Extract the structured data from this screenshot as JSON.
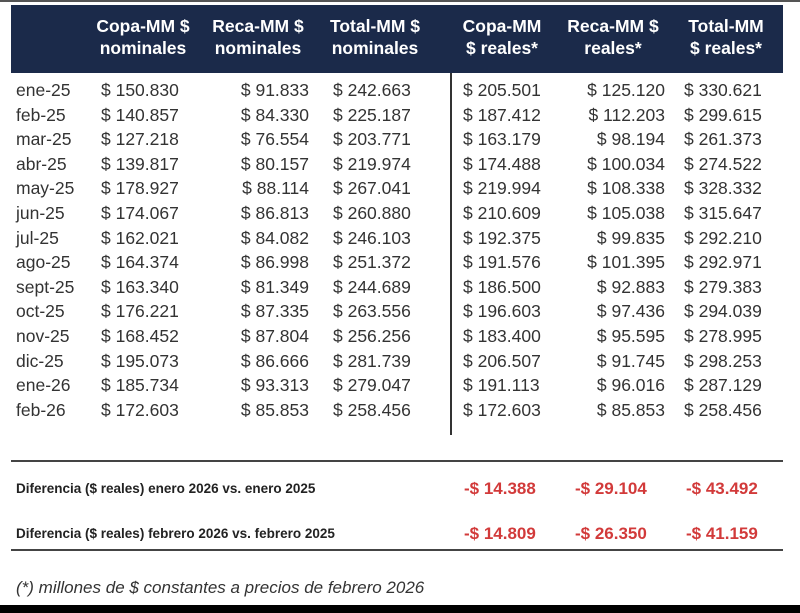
{
  "table": {
    "headers": [
      "Copa-MM $\nnominales",
      "Reca-MM $\nnominales",
      "Total-MM $\nnominales",
      "Copa-MM\n$ reales*",
      "Reca-MM $\nreales*",
      "Total-MM\n$ reales*"
    ],
    "rows": [
      {
        "month": "ene-25",
        "values": [
          "$ 150.830",
          "$ 91.833",
          "$ 242.663",
          "$ 205.501",
          "$ 125.120",
          "$ 330.621"
        ]
      },
      {
        "month": "feb-25",
        "values": [
          "$ 140.857",
          "$ 84.330",
          "$ 225.187",
          "$ 187.412",
          "$ 112.203",
          "$ 299.615"
        ]
      },
      {
        "month": "mar-25",
        "values": [
          "$ 127.218",
          "$ 76.554",
          "$ 203.771",
          "$ 163.179",
          "$ 98.194",
          "$ 261.373"
        ]
      },
      {
        "month": "abr-25",
        "values": [
          "$ 139.817",
          "$ 80.157",
          "$ 219.974",
          "$ 174.488",
          "$ 100.034",
          "$ 274.522"
        ]
      },
      {
        "month": "may-25",
        "values": [
          "$ 178.927",
          "$ 88.114",
          "$ 267.041",
          "$ 219.994",
          "$ 108.338",
          "$ 328.332"
        ]
      },
      {
        "month": "jun-25",
        "values": [
          "$ 174.067",
          "$ 86.813",
          "$ 260.880",
          "$ 210.609",
          "$ 105.038",
          "$ 315.647"
        ]
      },
      {
        "month": "jul-25",
        "values": [
          "$ 162.021",
          "$ 84.082",
          "$ 246.103",
          "$ 192.375",
          "$ 99.835",
          "$ 292.210"
        ]
      },
      {
        "month": "ago-25",
        "values": [
          "$ 164.374",
          "$ 86.998",
          "$ 251.372",
          "$ 191.576",
          "$ 101.395",
          "$ 292.971"
        ]
      },
      {
        "month": "sept-25",
        "values": [
          "$ 163.340",
          "$ 81.349",
          "$ 244.689",
          "$ 186.500",
          "$ 92.883",
          "$ 279.383"
        ]
      },
      {
        "month": "oct-25",
        "values": [
          "$ 176.221",
          "$ 87.335",
          "$ 263.556",
          "$ 196.603",
          "$ 97.436",
          "$ 294.039"
        ]
      },
      {
        "month": "nov-25",
        "values": [
          "$ 168.452",
          "$ 87.804",
          "$ 256.256",
          "$ 183.400",
          "$ 95.595",
          "$ 278.995"
        ]
      },
      {
        "month": "dic-25",
        "values": [
          "$ 195.073",
          "$ 86.666",
          "$ 281.739",
          "$ 206.507",
          "$ 91.745",
          "$ 298.253"
        ]
      },
      {
        "month": "ene-26",
        "values": [
          "$ 185.734",
          "$ 93.313",
          "$ 279.047",
          "$ 191.113",
          "$ 96.016",
          "$ 287.129"
        ]
      },
      {
        "month": "feb-26",
        "values": [
          "$ 172.603",
          "$ 85.853",
          "$ 258.456",
          "$ 172.603",
          "$ 85.853",
          "$ 258.456"
        ]
      }
    ]
  },
  "differences": [
    {
      "label": "Diferencia ($ reales) enero 2026 vs. enero 2025",
      "values": [
        "-$ 14.388",
        "-$ 29.104",
        "-$ 43.492"
      ]
    },
    {
      "label": "Diferencia ($ reales) febrero 2026 vs. febrero 2025",
      "values": [
        "-$ 14.809",
        "-$ 26.350",
        "-$ 41.159"
      ]
    }
  ],
  "footnote": "(*) millones de $ constantes a precios de febrero 2026",
  "colors": {
    "header_bg": "#1b2a4a",
    "header_text": "#ffffff",
    "negative": "#d23a3a"
  }
}
